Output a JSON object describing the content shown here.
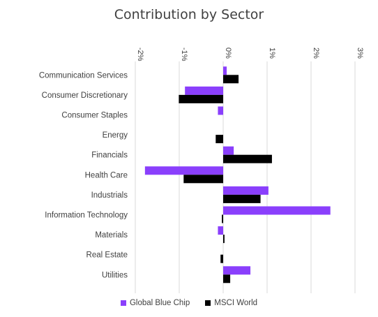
{
  "chart_data": {
    "type": "bar",
    "orientation": "horizontal",
    "title": "Contribution by Sector",
    "categories": [
      "Communication Services",
      "Consumer Discretionary",
      "Consumer Staples",
      "Energy",
      "Financials",
      "Health Care",
      "Industrials",
      "Information Technology",
      "Materials",
      "Real Estate",
      "Utilities"
    ],
    "series": [
      {
        "name": "Global Blue Chip",
        "color": "#8a3ffc",
        "values": [
          0.08,
          -0.87,
          -0.12,
          0.0,
          0.24,
          -1.78,
          1.03,
          2.44,
          -0.12,
          0.0,
          0.62
        ]
      },
      {
        "name": "MSCI World",
        "color": "#000000",
        "values": [
          0.35,
          -1.01,
          0.0,
          -0.17,
          1.11,
          -0.9,
          0.85,
          -0.03,
          0.03,
          -0.06,
          0.16
        ]
      }
    ],
    "xlim": [
      -2,
      3
    ],
    "ticks": [
      "-2%",
      "-1%",
      "0%",
      "1%",
      "2%",
      "3%"
    ],
    "grid": true,
    "legend": "bottom"
  }
}
